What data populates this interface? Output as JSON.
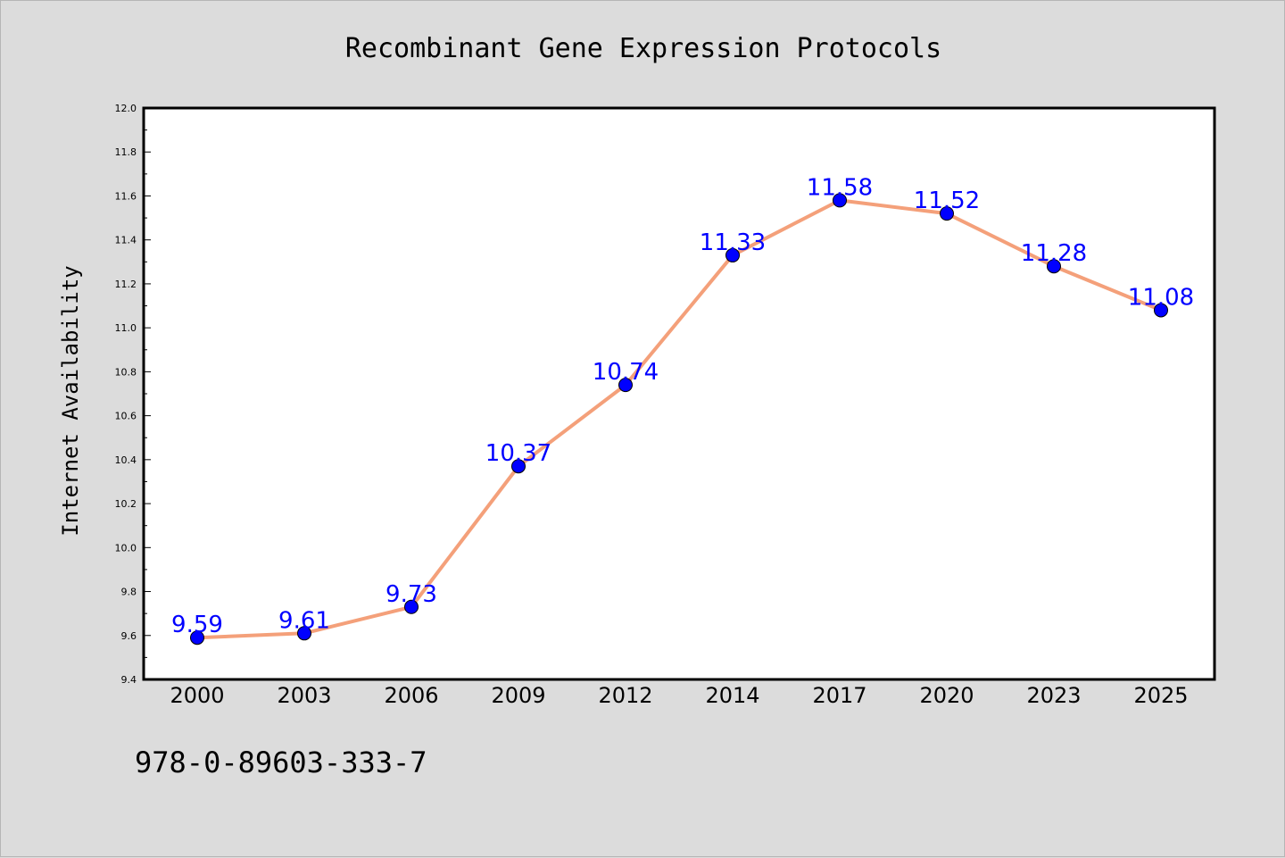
{
  "chart_data": {
    "type": "line",
    "title": "Recombinant Gene Expression Protocols",
    "xlabel": "",
    "ylabel": "Internet Availability",
    "categories": [
      "2000",
      "2003",
      "2006",
      "2009",
      "2012",
      "2014",
      "2017",
      "2020",
      "2023",
      "2025"
    ],
    "series": [
      {
        "values": [
          9.59,
          9.61,
          9.73,
          10.37,
          10.74,
          11.33,
          11.58,
          11.52,
          11.28,
          11.08
        ],
        "data_labels": [
          "9.59",
          "9.61",
          "9.73",
          "10.37",
          "10.74",
          "11.33",
          "11.58",
          "11.52",
          "11.28",
          "11.08"
        ],
        "line_color": "#f4a07a",
        "marker_color": "#0000ff",
        "label_color": "#0000ff"
      }
    ],
    "ylim": [
      9.4,
      12.0
    ],
    "yticks": [
      "9.4",
      "9.6",
      "9.8",
      "10.0",
      "10.2",
      "10.4",
      "10.6",
      "10.8",
      "11.0",
      "11.2",
      "11.4",
      "11.6",
      "11.8",
      "12.0"
    ],
    "grid": false,
    "legend": "none"
  },
  "footer": {
    "code": "978-0-89603-333-7"
  }
}
